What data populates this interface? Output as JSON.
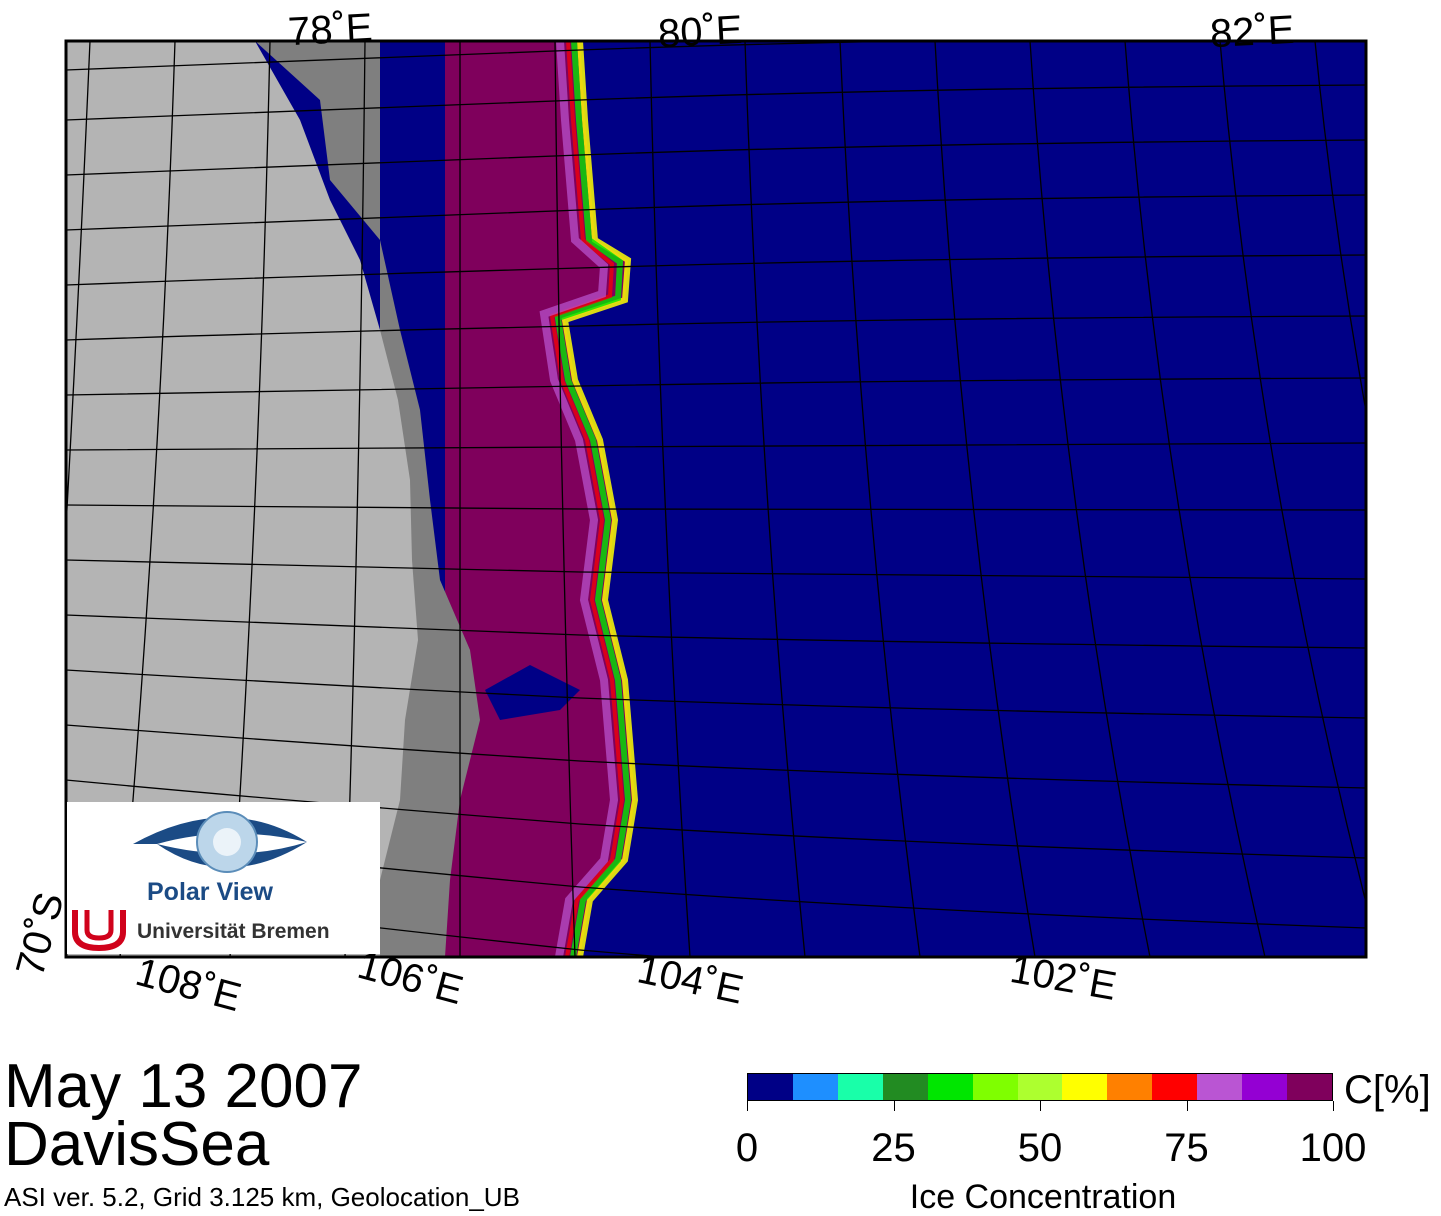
{
  "map": {
    "lon_labels_top": [
      "78˚E",
      "80˚E",
      "82˚E"
    ],
    "lon_labels_bottom": [
      "108˚E",
      "106˚E",
      "104˚E",
      "102˚E"
    ],
    "lat_label": "70˚S",
    "colors": {
      "land": "#b4b4b4",
      "ice_shelf": "#7f7f7f",
      "open_water": "#000086",
      "ice_high": "#7f005c",
      "grid": "#000000"
    }
  },
  "logo": {
    "title": "Polar View",
    "institution": "Universität Bremen",
    "icon": "eye-globe-icon",
    "uni_icon": "university-bremen-logo-icon"
  },
  "caption": {
    "date": "May 13 2007",
    "region": "DavisSea",
    "meta": "ASI ver. 5.2,  Grid 3.125 km, Geolocation_UB"
  },
  "colorbar": {
    "title": "Ice Concentration",
    "unit": "C[%]",
    "min": 0,
    "max": 100,
    "tick_labels": [
      "0",
      "25",
      "50",
      "75",
      "100"
    ],
    "colors": [
      "#000086",
      "#1e8fff",
      "#19ffa9",
      "#228b22",
      "#00e600",
      "#7fff00",
      "#adff2f",
      "#ffff00",
      "#ff8000",
      "#ff0000",
      "#ba55d3",
      "#9400d3",
      "#7f005c"
    ]
  }
}
